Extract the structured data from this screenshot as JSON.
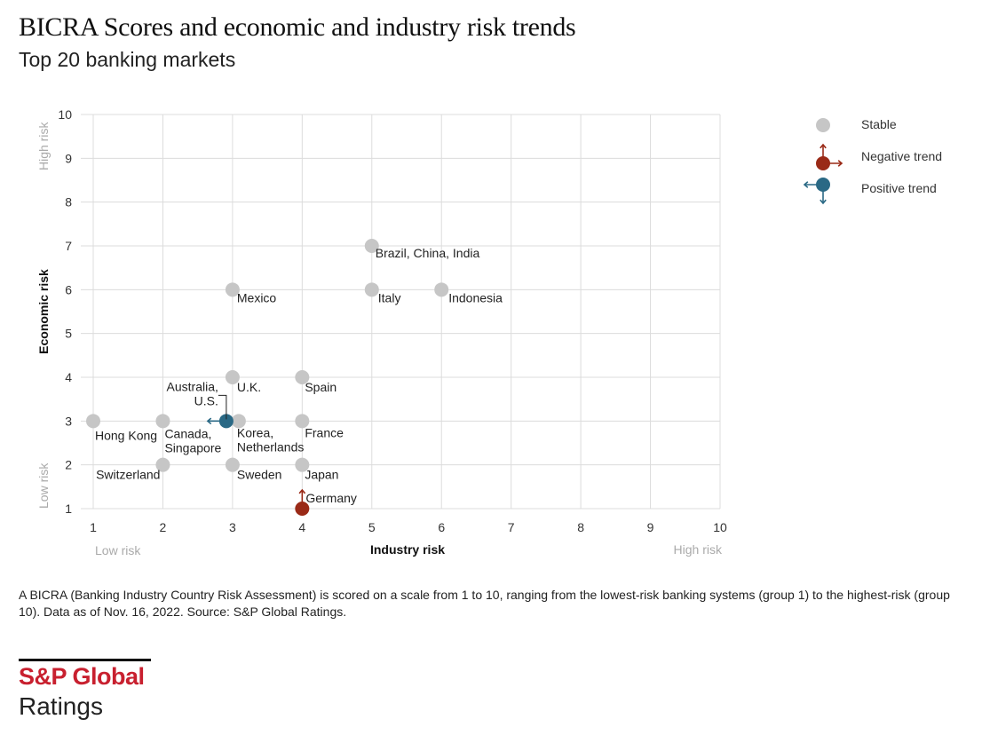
{
  "title": "BICRA Scores and economic and industry risk trends",
  "subtitle": "Top 20 banking markets",
  "note": "A BICRA (Banking Industry Country Risk Assessment) is scored on a scale from 1 to 10, ranging from the lowest-risk banking systems (group 1) to the highest-risk (group 10). Data as of Nov. 16, 2022. Source: S&P Global Ratings.",
  "logo": {
    "line1": "S&P Global",
    "line2": "Ratings"
  },
  "chart_data": {
    "type": "scatter",
    "xlabel": "Industry risk",
    "ylabel": "Economic risk",
    "xlim": [
      1,
      10
    ],
    "ylim": [
      1,
      10
    ],
    "xticks": [
      1,
      2,
      3,
      4,
      5,
      6,
      7,
      8,
      9,
      10
    ],
    "yticks": [
      1,
      2,
      3,
      4,
      5,
      6,
      7,
      8,
      9,
      10
    ],
    "x_low_label": "Low risk",
    "x_high_label": "High risk",
    "y_low_label": "Low risk",
    "y_high_label": "High risk",
    "grid": true,
    "legend_position": "right",
    "legend": [
      {
        "key": "stable",
        "label": "Stable",
        "color": "#c6c6c6"
      },
      {
        "key": "negative",
        "label": "Negative trend",
        "color": "#9a2a17"
      },
      {
        "key": "positive",
        "label": "Positive trend",
        "color": "#2a6985"
      }
    ],
    "points": [
      {
        "label": "Hong Kong",
        "x": 1,
        "y": 3,
        "trend": "stable"
      },
      {
        "label": "Switzerland",
        "x": 2,
        "y": 2,
        "trend": "stable"
      },
      {
        "label": "Canada, Singapore",
        "x": 2,
        "y": 3,
        "trend": "stable"
      },
      {
        "label": "Sweden",
        "x": 3,
        "y": 2,
        "trend": "stable"
      },
      {
        "label": "Australia, U.S.",
        "x": 3,
        "y": 3,
        "trend": "positive",
        "trend_axis": "industry"
      },
      {
        "label": "Korea, Netherlands",
        "x": 3,
        "y": 3,
        "trend": "stable"
      },
      {
        "label": "U.K.",
        "x": 3,
        "y": 4,
        "trend": "stable"
      },
      {
        "label": "Mexico",
        "x": 3,
        "y": 6,
        "trend": "stable"
      },
      {
        "label": "Germany",
        "x": 4,
        "y": 1,
        "trend": "negative",
        "trend_axis": "economic"
      },
      {
        "label": "Japan",
        "x": 4,
        "y": 2,
        "trend": "stable"
      },
      {
        "label": "France",
        "x": 4,
        "y": 3,
        "trend": "stable"
      },
      {
        "label": "Spain",
        "x": 4,
        "y": 4,
        "trend": "stable"
      },
      {
        "label": "Italy",
        "x": 5,
        "y": 6,
        "trend": "stable"
      },
      {
        "label": "Brazil, China, India",
        "x": 5,
        "y": 7,
        "trend": "stable"
      },
      {
        "label": "Indonesia",
        "x": 6,
        "y": 6,
        "trend": "stable"
      }
    ]
  }
}
